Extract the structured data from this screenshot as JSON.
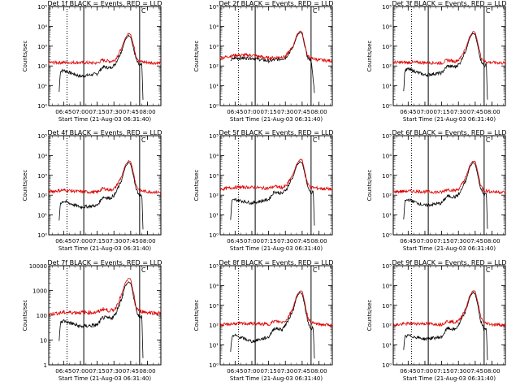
{
  "figure": {
    "title_template": "Det {n}f BLACK = Events, RED = LLD",
    "xlabel": "Start Time (21-Aug-03 06:31:40)",
    "ylabel": "Counts/sec",
    "marker_label": "C"
  },
  "colors": {
    "events": "#000000",
    "lld": "#dd0000",
    "axes": "#000000",
    "background": "#ffffff"
  },
  "chart_data": {
    "type": "line",
    "x_units": "UT time (hh:mm)",
    "y_scale": "log",
    "xlim": [
      "06:31:40",
      "08:12:00"
    ],
    "xticks": [
      "06:45",
      "07:00",
      "07:15",
      "07:30",
      "07:45",
      "08:00"
    ],
    "vertical_markers": [
      {
        "time": "06:48",
        "style": "dotted"
      },
      {
        "time": "07:03",
        "style": "solid"
      },
      {
        "time": "07:53",
        "style": "solid",
        "label": "C"
      }
    ],
    "panels": [
      {
        "detector": "1",
        "title": "Det 1f BLACK = Events, RED = LLD",
        "ylim": [
          1,
          100000
        ],
        "yticks": [
          "10^0",
          "10^1",
          "10^2",
          "10^3",
          "10^4",
          "10^5"
        ],
        "series": [
          {
            "name": "Events",
            "color": "#000000",
            "start": "06:41",
            "end": "07:56",
            "key_times": [
              "06:41",
              "06:42",
              "06:45",
              "07:00",
              "07:15",
              "07:20",
              "07:27",
              "07:31",
              "07:37",
              "07:40",
              "07:43",
              "07:45",
              "07:47",
              "07:50",
              "07:53",
              "07:55",
              "07:56"
            ],
            "values": [
              5,
              55,
              60,
              30,
              40,
              90,
              80,
              120,
              600,
              2000,
              3500,
              3000,
              1000,
              200,
              100,
              120,
              2
            ]
          },
          {
            "name": "LLD",
            "color": "#dd0000",
            "start": "06:31:40",
            "end": "08:12",
            "key_times": [
              "06:31:40",
              "06:45",
              "07:00",
              "07:15",
              "07:20",
              "07:27",
              "07:31",
              "07:37",
              "07:40",
              "07:43",
              "07:45",
              "07:47",
              "07:50",
              "07:53",
              "08:00",
              "08:12"
            ],
            "values": [
              150,
              150,
              150,
              140,
              200,
              170,
              200,
              800,
              2500,
              4500,
              4000,
              1500,
              300,
              170,
              150,
              140
            ]
          }
        ]
      },
      {
        "detector": "2",
        "title": "Det 2f BLACK = Events, RED = LLD",
        "ylim": [
          1,
          100000
        ],
        "yticks": [
          "10^0",
          "10^1",
          "10^2",
          "10^3",
          "10^4",
          "10^5"
        ],
        "series": [
          {
            "name": "Events",
            "color": "#000000",
            "start": "06:41",
            "end": "07:56",
            "key_times": [
              "06:41",
              "06:45",
              "07:00",
              "07:15",
              "07:30",
              "07:37",
              "07:40",
              "07:43",
              "07:45",
              "07:47",
              "07:50",
              "07:53",
              "07:56"
            ],
            "values": [
              200,
              250,
              250,
              180,
              250,
              900,
              3000,
              5000,
              4200,
              1200,
              250,
              200,
              5
            ]
          },
          {
            "name": "LLD",
            "color": "#dd0000",
            "start": "06:31:40",
            "end": "08:12",
            "key_times": [
              "06:31:40",
              "06:45",
              "07:00",
              "07:15",
              "07:30",
              "07:37",
              "07:40",
              "07:43",
              "07:45",
              "07:47",
              "07:50",
              "07:53",
              "08:00",
              "08:12"
            ],
            "values": [
              250,
              350,
              350,
              250,
              300,
              1000,
              3500,
              6000,
              5000,
              1500,
              300,
              250,
              200,
              180
            ]
          }
        ]
      },
      {
        "detector": "3",
        "title": "Det 3f BLACK = Events, RED = LLD",
        "ylim": [
          1,
          100000
        ],
        "yticks": [
          "10^0",
          "10^1",
          "10^2",
          "10^3",
          "10^4",
          "10^5"
        ],
        "series": [
          {
            "name": "Events",
            "color": "#000000",
            "start": "06:41",
            "end": "07:56",
            "key_times": [
              "06:41",
              "06:42",
              "06:45",
              "07:00",
              "07:15",
              "07:20",
              "07:27",
              "07:31",
              "07:37",
              "07:40",
              "07:43",
              "07:45",
              "07:47",
              "07:50",
              "07:53",
              "07:55",
              "07:56"
            ],
            "values": [
              5,
              60,
              70,
              35,
              45,
              100,
              90,
              130,
              700,
              2500,
              4500,
              3800,
              1200,
              200,
              100,
              120,
              2
            ]
          },
          {
            "name": "LLD",
            "color": "#dd0000",
            "start": "06:31:40",
            "end": "08:12",
            "key_times": [
              "06:31:40",
              "06:45",
              "07:00",
              "07:15",
              "07:20",
              "07:27",
              "07:31",
              "07:37",
              "07:40",
              "07:43",
              "07:45",
              "07:47",
              "07:50",
              "07:53",
              "08:00",
              "08:12"
            ],
            "values": [
              150,
              150,
              150,
              140,
              200,
              170,
              220,
              900,
              3000,
              5500,
              5000,
              1800,
              300,
              170,
              150,
              140
            ]
          }
        ]
      },
      {
        "detector": "4",
        "title": "Det 4f BLACK = Events, RED = LLD",
        "ylim": [
          1,
          100000
        ],
        "yticks": [
          "10^0",
          "10^1",
          "10^2",
          "10^3",
          "10^4",
          "10^5"
        ],
        "series": [
          {
            "name": "Events",
            "color": "#000000",
            "start": "06:41",
            "end": "07:56",
            "key_times": [
              "06:41",
              "06:42",
              "06:45",
              "07:00",
              "07:15",
              "07:20",
              "07:27",
              "07:31",
              "07:37",
              "07:40",
              "07:43",
              "07:45",
              "07:47",
              "07:50",
              "07:53",
              "07:55",
              "07:56"
            ],
            "values": [
              5,
              40,
              50,
              25,
              30,
              80,
              70,
              110,
              600,
              2500,
              4500,
              3800,
              1200,
              200,
              90,
              110,
              2
            ]
          },
          {
            "name": "LLD",
            "color": "#dd0000",
            "start": "06:31:40",
            "end": "08:12",
            "key_times": [
              "06:31:40",
              "06:45",
              "07:00",
              "07:15",
              "07:20",
              "07:27",
              "07:31",
              "07:37",
              "07:40",
              "07:43",
              "07:45",
              "07:47",
              "07:50",
              "07:53",
              "08:00",
              "08:12"
            ],
            "values": [
              150,
              180,
              150,
              140,
              220,
              180,
              230,
              900,
              3000,
              5500,
              5000,
              1800,
              300,
              170,
              150,
              140
            ]
          }
        ]
      },
      {
        "detector": "5",
        "title": "Det 5f BLACK = Events, RED = LLD",
        "ylim": [
          1,
          100000
        ],
        "yticks": [
          "10^0",
          "10^1",
          "10^2",
          "10^3",
          "10^4",
          "10^5"
        ],
        "series": [
          {
            "name": "Events",
            "color": "#000000",
            "start": "06:41",
            "end": "07:56",
            "key_times": [
              "06:41",
              "06:42",
              "06:45",
              "07:00",
              "07:15",
              "07:20",
              "07:27",
              "07:31",
              "07:37",
              "07:40",
              "07:43",
              "07:45",
              "07:47",
              "07:50",
              "07:53",
              "07:55",
              "07:56"
            ],
            "values": [
              5,
              50,
              60,
              40,
              60,
              150,
              120,
              200,
              900,
              3000,
              5000,
              4200,
              1500,
              250,
              120,
              150,
              3
            ]
          },
          {
            "name": "LLD",
            "color": "#dd0000",
            "start": "06:31:40",
            "end": "08:12",
            "key_times": [
              "06:31:40",
              "06:45",
              "07:00",
              "07:15",
              "07:20",
              "07:27",
              "07:31",
              "07:37",
              "07:40",
              "07:43",
              "07:45",
              "07:47",
              "07:50",
              "07:53",
              "08:00",
              "08:12"
            ],
            "values": [
              200,
              250,
              250,
              220,
              280,
              240,
              300,
              1200,
              3500,
              6500,
              6000,
              2000,
              350,
              250,
              220,
              200
            ]
          }
        ]
      },
      {
        "detector": "6",
        "title": "Det 6f BLACK = Events, RED = LLD",
        "ylim": [
          1,
          100000
        ],
        "yticks": [
          "10^0",
          "10^1",
          "10^2",
          "10^3",
          "10^4",
          "10^5"
        ],
        "series": [
          {
            "name": "Events",
            "color": "#000000",
            "start": "06:41",
            "end": "07:56",
            "key_times": [
              "06:41",
              "06:42",
              "06:45",
              "07:00",
              "07:15",
              "07:20",
              "07:27",
              "07:31",
              "07:37",
              "07:40",
              "07:43",
              "07:45",
              "07:47",
              "07:50",
              "07:53",
              "07:55",
              "07:56"
            ],
            "values": [
              5,
              50,
              60,
              30,
              40,
              90,
              80,
              120,
              600,
              2500,
              4500,
              3800,
              1200,
              200,
              100,
              120,
              2
            ]
          },
          {
            "name": "LLD",
            "color": "#dd0000",
            "start": "06:31:40",
            "end": "08:12",
            "key_times": [
              "06:31:40",
              "06:45",
              "07:00",
              "07:15",
              "07:20",
              "07:27",
              "07:31",
              "07:37",
              "07:40",
              "07:43",
              "07:45",
              "07:47",
              "07:50",
              "07:53",
              "08:00",
              "08:12"
            ],
            "values": [
              150,
              160,
              150,
              140,
              200,
              170,
              220,
              900,
              3000,
              5500,
              5000,
              1800,
              300,
              170,
              150,
              140
            ]
          }
        ]
      },
      {
        "detector": "7",
        "title": "Det 7f BLACK = Events, RED = LLD",
        "ylim": [
          1,
          10000
        ],
        "yticks": [
          "1",
          "10",
          "100",
          "1000",
          "10000"
        ],
        "series": [
          {
            "name": "Events",
            "color": "#000000",
            "start": "06:41",
            "end": "07:56",
            "key_times": [
              "06:41",
              "06:42",
              "06:45",
              "07:00",
              "07:15",
              "07:20",
              "07:27",
              "07:31",
              "07:37",
              "07:40",
              "07:43",
              "07:45",
              "07:47",
              "07:50",
              "07:53",
              "07:55",
              "07:56"
            ],
            "values": [
              8,
              50,
              60,
              35,
              40,
              80,
              75,
              100,
              500,
              1500,
              2200,
              2000,
              800,
              150,
              80,
              100,
              2
            ]
          },
          {
            "name": "LLD",
            "color": "#dd0000",
            "start": "06:31:40",
            "end": "08:12",
            "key_times": [
              "06:31:40",
              "06:45",
              "07:00",
              "07:15",
              "07:20",
              "07:27",
              "07:31",
              "07:37",
              "07:40",
              "07:43",
              "07:45",
              "07:47",
              "07:50",
              "07:53",
              "08:00",
              "08:12"
            ],
            "values": [
              110,
              130,
              130,
              130,
              180,
              150,
              180,
              700,
              2000,
              3000,
              2800,
              1000,
              200,
              150,
              130,
              120
            ]
          }
        ]
      },
      {
        "detector": "8",
        "title": "Det 8f BLACK = Events, RED = LLD",
        "ylim": [
          1,
          100000
        ],
        "yticks": [
          "10^0",
          "10^1",
          "10^2",
          "10^3",
          "10^4",
          "10^5"
        ],
        "series": [
          {
            "name": "Events",
            "color": "#000000",
            "start": "06:41",
            "end": "07:56",
            "key_times": [
              "06:41",
              "06:42",
              "06:45",
              "07:00",
              "07:15",
              "07:20",
              "07:27",
              "07:31",
              "07:37",
              "07:40",
              "07:43",
              "07:45",
              "07:47",
              "07:50",
              "07:53",
              "07:55",
              "07:56"
            ],
            "values": [
              5,
              25,
              30,
              15,
              25,
              70,
              60,
              120,
              600,
              2500,
              4500,
              3800,
              1200,
              150,
              60,
              80,
              2
            ]
          },
          {
            "name": "LLD",
            "color": "#dd0000",
            "start": "06:31:40",
            "end": "08:12",
            "key_times": [
              "06:31:40",
              "06:45",
              "07:00",
              "07:15",
              "07:20",
              "07:27",
              "07:31",
              "07:37",
              "07:40",
              "07:43",
              "07:45",
              "07:47",
              "07:50",
              "07:53",
              "08:00",
              "08:12"
            ],
            "values": [
              100,
              120,
              120,
              110,
              160,
              140,
              180,
              800,
              3000,
              5500,
              5000,
              1800,
              250,
              130,
              110,
              100
            ]
          }
        ]
      },
      {
        "detector": "9",
        "title": "Det 9f BLACK = Events, RED = LLD",
        "ylim": [
          1,
          100000
        ],
        "yticks": [
          "10^0",
          "10^1",
          "10^2",
          "10^3",
          "10^4",
          "10^5"
        ],
        "series": [
          {
            "name": "Events",
            "color": "#000000",
            "start": "06:41",
            "end": "07:56",
            "key_times": [
              "06:41",
              "06:42",
              "06:45",
              "07:00",
              "07:15",
              "07:20",
              "07:27",
              "07:31",
              "07:37",
              "07:40",
              "07:43",
              "07:45",
              "07:47",
              "07:50",
              "07:53",
              "07:55",
              "07:56"
            ],
            "values": [
              5,
              25,
              30,
              20,
              25,
              70,
              60,
              120,
              600,
              2500,
              4500,
              3800,
              1200,
              150,
              60,
              80,
              2
            ]
          },
          {
            "name": "LLD",
            "color": "#dd0000",
            "start": "06:31:40",
            "end": "08:12",
            "key_times": [
              "06:31:40",
              "06:45",
              "07:00",
              "07:15",
              "07:20",
              "07:27",
              "07:31",
              "07:37",
              "07:40",
              "07:43",
              "07:45",
              "07:47",
              "07:50",
              "07:53",
              "08:00",
              "08:12"
            ],
            "values": [
              100,
              120,
              120,
              110,
              160,
              140,
              180,
              800,
              3000,
              5500,
              5000,
              1800,
              250,
              130,
              110,
              100
            ]
          }
        ]
      }
    ]
  }
}
